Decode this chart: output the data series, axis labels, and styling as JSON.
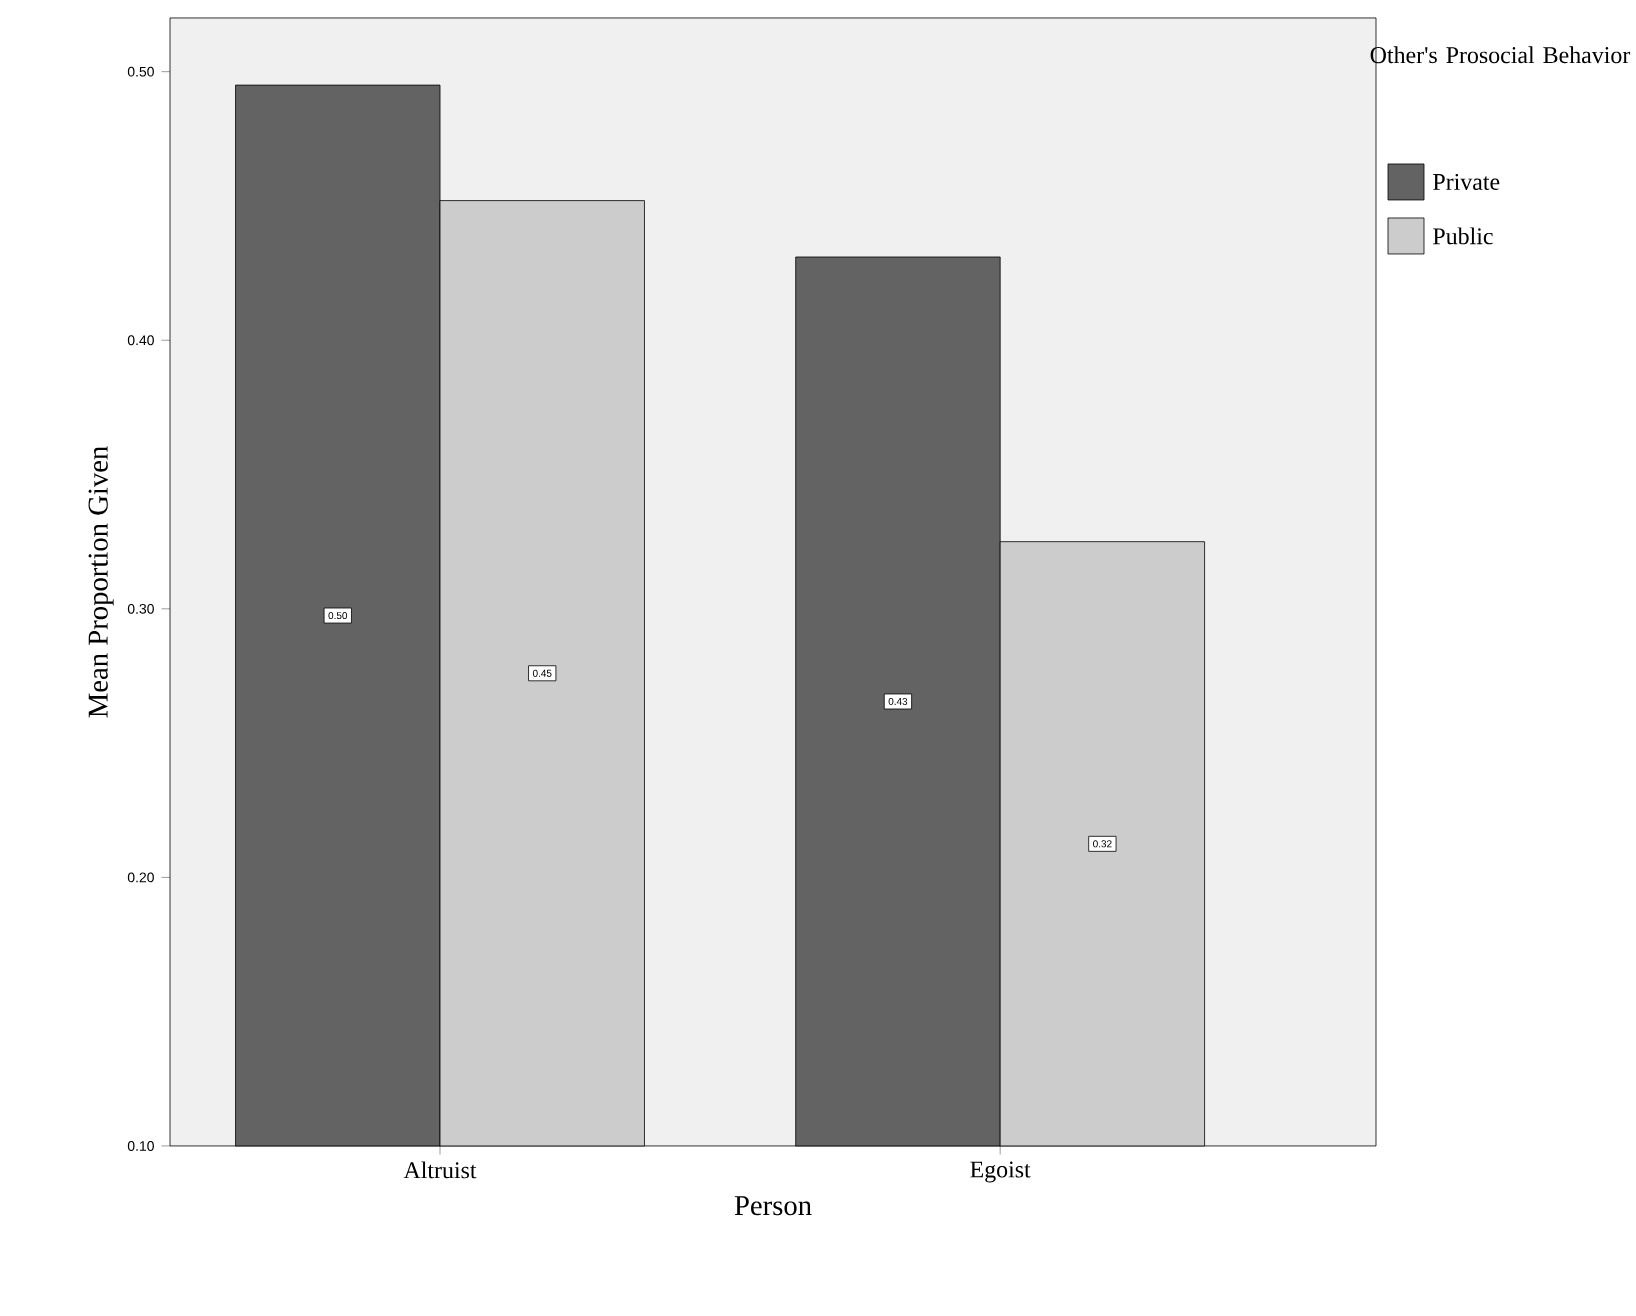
{
  "chart_data": {
    "type": "bar",
    "xlabel": "Person",
    "ylabel": "Mean Proportion Given",
    "legend_title": "Other's Prosocial Behavior",
    "categories": [
      "Altruist",
      "Egoist"
    ],
    "series": [
      {
        "name": "Private",
        "color": "#636363",
        "values": [
          0.495,
          0.431
        ],
        "value_labels": [
          "0.50",
          "0.43"
        ]
      },
      {
        "name": "Public",
        "color": "#cccccc",
        "values": [
          0.452,
          0.325
        ],
        "value_labels": [
          "0.45",
          "0.32"
        ]
      }
    ],
    "ylim": [
      0.1,
      0.52
    ],
    "yticks": [
      {
        "value": 0.1,
        "label": "0.10"
      },
      {
        "value": 0.2,
        "label": "0.20"
      },
      {
        "value": 0.3,
        "label": "0.30"
      },
      {
        "value": 0.4,
        "label": "0.40"
      },
      {
        "value": 0.5,
        "label": "0.50"
      }
    ],
    "legend": "top right"
  }
}
